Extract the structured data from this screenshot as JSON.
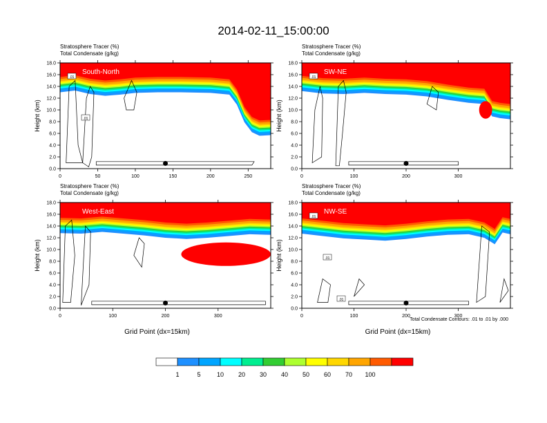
{
  "figure": {
    "title": "2014-02-11_15:00:00",
    "footnote": "Total Condensate Contours: .01 to .01 by .000"
  },
  "colors": {
    "levels": [
      "#ffffff",
      "#1e90ff",
      "#00a5ff",
      "#00ffff",
      "#00ee90",
      "#32cd32",
      "#adff2f",
      "#ffff00",
      "#ffd700",
      "#ffa500",
      "#ff5a00",
      "#ff0000"
    ],
    "contour": "#000000"
  },
  "chart_data": [
    {
      "type": "heatmap",
      "panel_label": "South-North",
      "title_line1": "Stratosphere Tracer   (%)",
      "title_line2": "Total Condensate   (g/kg)",
      "ylabel": "Height (km)",
      "xlabel": "",
      "xlim": [
        0,
        280
      ],
      "ylim": [
        0,
        18
      ],
      "x_ticks": [
        "0",
        "50",
        "100",
        "150",
        "200",
        "250"
      ],
      "y_ticks": [
        "0.0",
        "2.0",
        "4.0",
        "6.0",
        "8.0",
        "10.0",
        "12.0",
        "14.0",
        "16.0",
        "18.0"
      ],
      "contour_labels": [
        ".01",
        ".01"
      ],
      "marker_x": 140,
      "tropopause_km": [
        [
          0,
          15.6
        ],
        [
          20,
          15.9
        ],
        [
          40,
          15.3
        ],
        [
          60,
          15.0
        ],
        [
          80,
          15.2
        ],
        [
          100,
          15.5
        ],
        [
          130,
          15.6
        ],
        [
          160,
          15.6
        ],
        [
          200,
          15.5
        ],
        [
          225,
          15.2
        ],
        [
          235,
          13.5
        ],
        [
          245,
          10.5
        ],
        [
          255,
          8.8
        ],
        [
          265,
          8.2
        ],
        [
          280,
          8.3
        ]
      ]
    },
    {
      "type": "heatmap",
      "panel_label": "SW-NE",
      "title_line1": "Stratosphere Tracer   (%)",
      "title_line2": "Total Condensate   (g/kg)",
      "ylabel": "Height (km)",
      "xlabel": "",
      "xlim": [
        0,
        400
      ],
      "ylim": [
        0,
        18
      ],
      "x_ticks": [
        "0",
        "100",
        "200",
        "300"
      ],
      "y_ticks": [
        "0.0",
        "2.0",
        "4.0",
        "6.0",
        "8.0",
        "10.0",
        "12.0",
        "14.0",
        "16.0",
        "18.0"
      ],
      "contour_labels": [
        ".01"
      ],
      "marker_x": 200,
      "tropopause_km": [
        [
          0,
          15.8
        ],
        [
          40,
          15.4
        ],
        [
          80,
          15.3
        ],
        [
          120,
          15.5
        ],
        [
          160,
          15.3
        ],
        [
          200,
          15.2
        ],
        [
          240,
          14.9
        ],
        [
          280,
          14.3
        ],
        [
          320,
          13.8
        ],
        [
          350,
          13.6
        ],
        [
          365,
          11.5
        ],
        [
          380,
          11.2
        ],
        [
          400,
          11.0
        ]
      ]
    },
    {
      "type": "heatmap",
      "panel_label": "West-East",
      "title_line1": "Stratosphere Tracer   (%)",
      "title_line2": "Total Condensate   (g/kg)",
      "ylabel": "Height (km)",
      "xlabel": "Grid Point (dx=15km)",
      "xlim": [
        0,
        400
      ],
      "ylim": [
        0,
        18
      ],
      "x_ticks": [
        "0",
        "100",
        "200",
        "300"
      ],
      "y_ticks": [
        "0.0",
        "2.0",
        "4.0",
        "6.0",
        "8.0",
        "10.0",
        "12.0",
        "14.0",
        "16.0",
        "18.0"
      ],
      "contour_labels": [],
      "marker_x": 200,
      "tropopause_km": [
        [
          0,
          15.4
        ],
        [
          40,
          15.3
        ],
        [
          80,
          15.6
        ],
        [
          120,
          15.3
        ],
        [
          160,
          15.0
        ],
        [
          200,
          14.6
        ],
        [
          240,
          14.4
        ],
        [
          280,
          14.6
        ],
        [
          320,
          14.9
        ],
        [
          360,
          15.2
        ],
        [
          400,
          15.1
        ]
      ]
    },
    {
      "type": "heatmap",
      "panel_label": "NW-SE",
      "title_line1": "Stratosphere Tracer   (%)",
      "title_line2": "Total Condensate   (g/kg)",
      "ylabel": "Height (km)",
      "xlabel": "Grid Point (dx=15km)",
      "xlim": [
        0,
        400
      ],
      "ylim": [
        0,
        18
      ],
      "x_ticks": [
        "0",
        "100",
        "200",
        "300"
      ],
      "y_ticks": [
        "0.0",
        "2.0",
        "4.0",
        "6.0",
        "8.0",
        "10.0",
        "12.0",
        "14.0",
        "16.0",
        "18.0"
      ],
      "contour_labels": [
        ".01",
        ".01",
        ".01"
      ],
      "marker_x": 200,
      "tropopause_km": [
        [
          0,
          15.3
        ],
        [
          40,
          14.9
        ],
        [
          80,
          14.5
        ],
        [
          120,
          14.3
        ],
        [
          160,
          14.1
        ],
        [
          200,
          14.4
        ],
        [
          240,
          14.8
        ],
        [
          280,
          15.1
        ],
        [
          320,
          15.2
        ],
        [
          350,
          14.6
        ],
        [
          370,
          13.5
        ],
        [
          385,
          15.5
        ],
        [
          400,
          15.2
        ]
      ]
    }
  ],
  "colorbar": {
    "labels": [
      "1",
      "5",
      "10",
      "20",
      "30",
      "40",
      "50",
      "60",
      "70",
      "100"
    ]
  }
}
